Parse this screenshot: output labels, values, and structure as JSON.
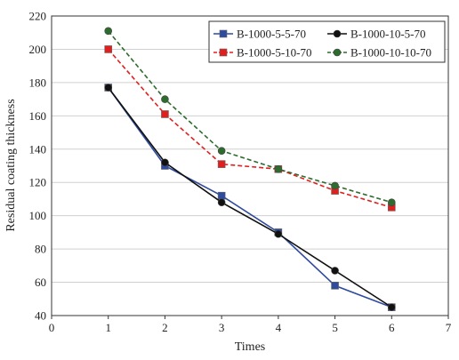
{
  "chart_data": {
    "type": "line",
    "xlabel": "Times",
    "ylabel": "Residual coating thickness",
    "xlim": [
      0,
      7
    ],
    "ylim": [
      40,
      220
    ],
    "xticks": [
      0,
      1,
      2,
      3,
      4,
      5,
      6,
      7
    ],
    "yticks": [
      40,
      60,
      80,
      100,
      120,
      140,
      160,
      180,
      200,
      220
    ],
    "grid": "horizontal",
    "legend_position": "top-right",
    "x": [
      1,
      2,
      3,
      4,
      5,
      6
    ],
    "series": [
      {
        "name": "B-1000-5-5-70",
        "values": [
          177,
          130,
          112,
          90,
          58,
          45
        ],
        "color": "#2f4b9e",
        "marker": "square",
        "line": "solid"
      },
      {
        "name": "B-1000-10-5-70",
        "values": [
          177,
          132,
          108,
          89,
          67,
          45
        ],
        "color": "#111111",
        "marker": "circle",
        "line": "solid"
      },
      {
        "name": "B-1000-5-10-70",
        "values": [
          200,
          161,
          131,
          128,
          115,
          105
        ],
        "color": "#e0201e",
        "marker": "square",
        "line": "dashed"
      },
      {
        "name": "B-1000-10-10-70",
        "values": [
          211,
          170,
          139,
          128,
          118,
          108
        ],
        "color": "#2e6b2e",
        "marker": "circle",
        "line": "dashed"
      }
    ]
  }
}
